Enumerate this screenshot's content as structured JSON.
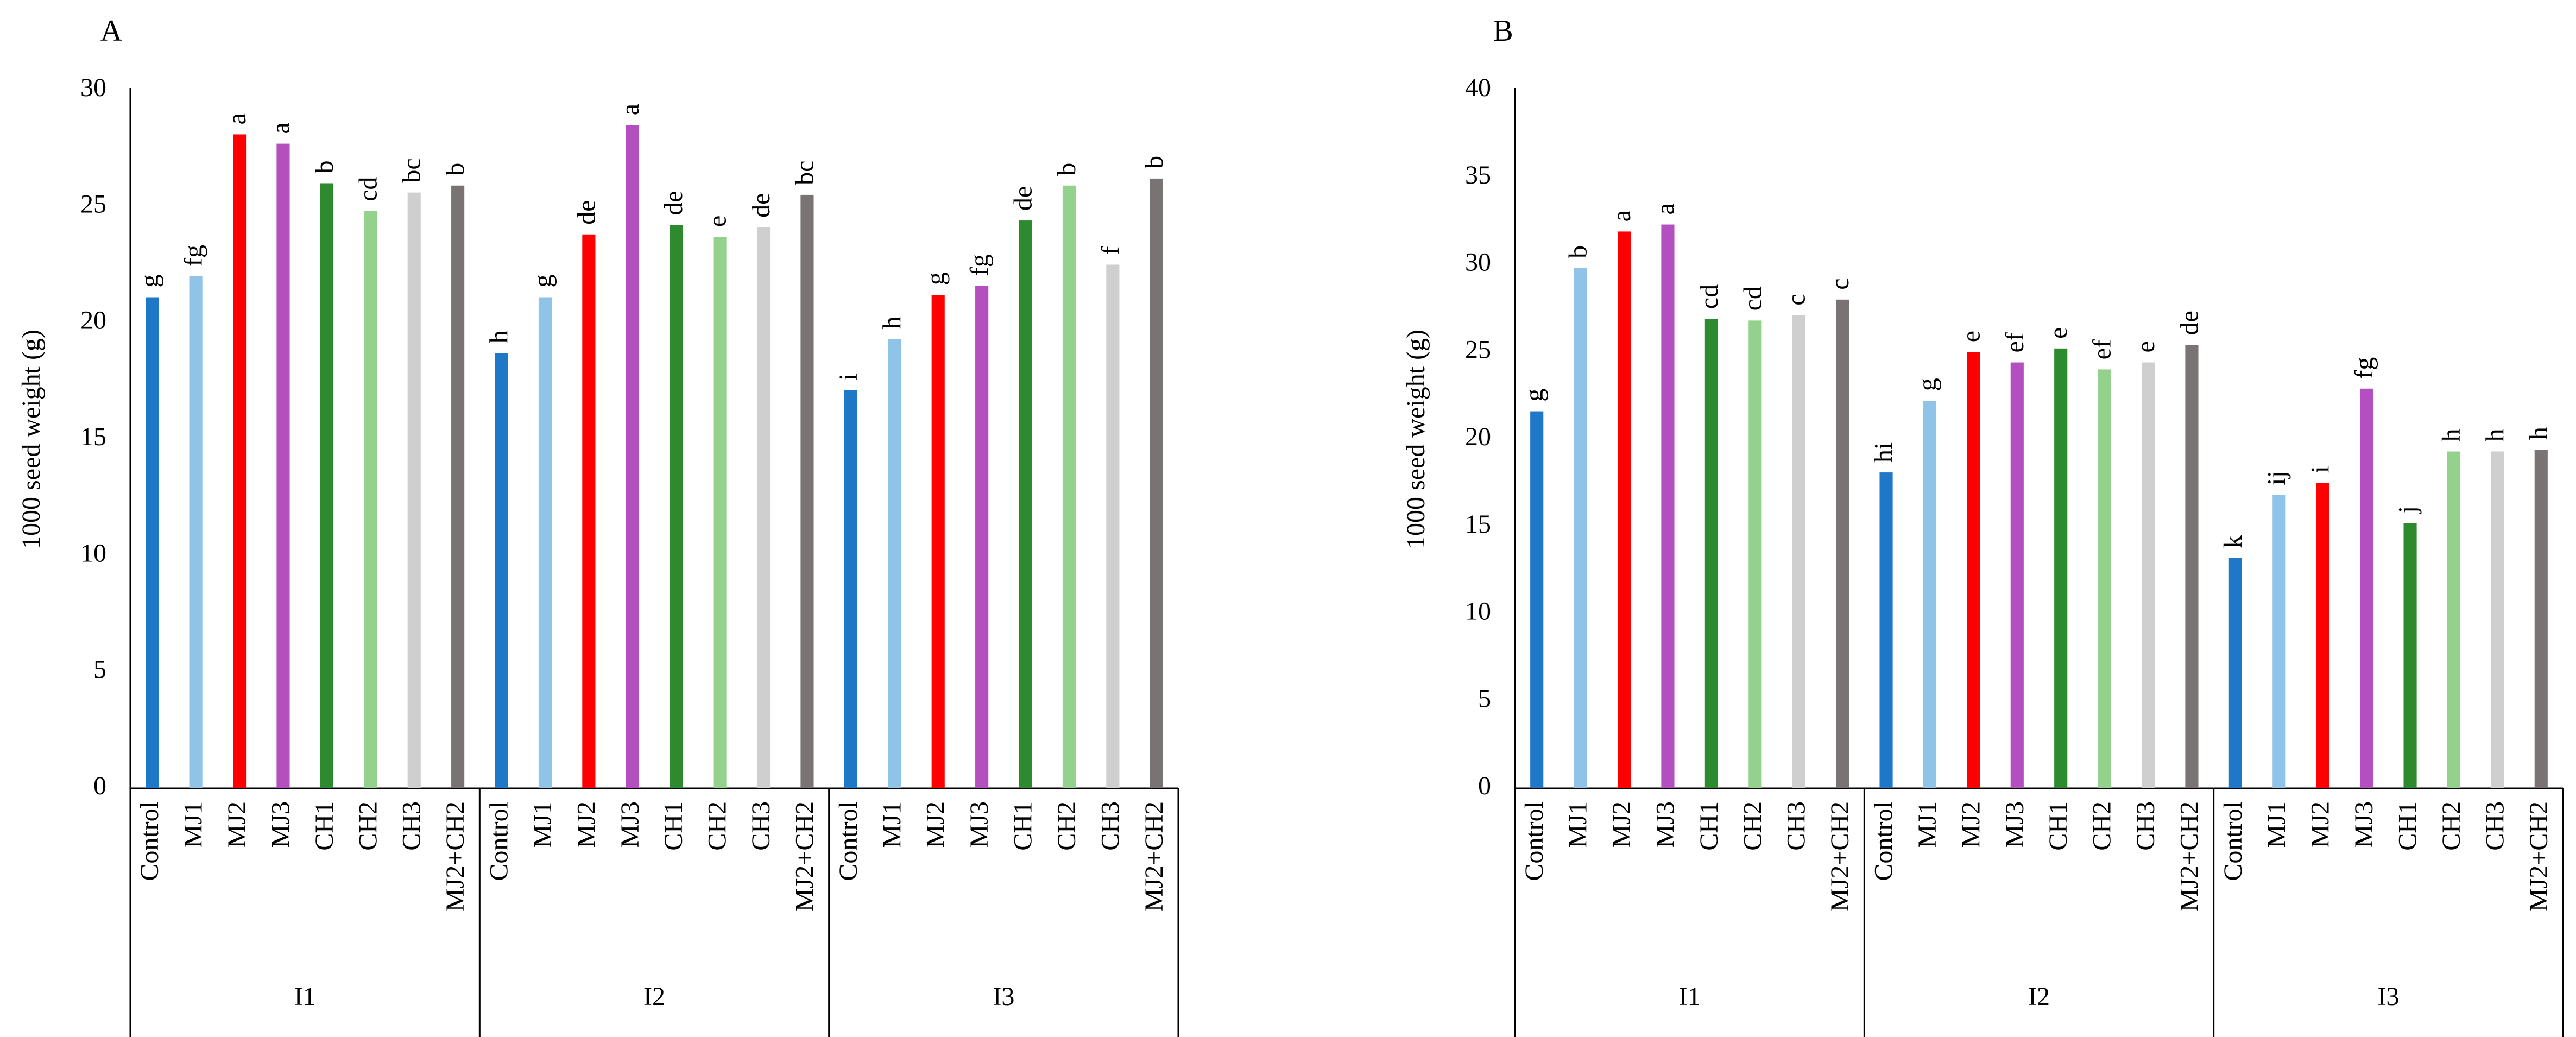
{
  "chart_data": [
    {
      "panel_label": "A",
      "type": "bar",
      "ylabel": "1000 seed weight (g)",
      "ylim": [
        0,
        30
      ],
      "yticks": [
        0,
        5,
        10,
        15,
        20,
        25,
        30
      ],
      "groups": [
        {
          "name": "I1",
          "categories": [
            "Control",
            "MJ1",
            "MJ2",
            "MJ3",
            "CH1",
            "CH2",
            "CH3",
            "MJ2+CH2"
          ],
          "values": [
            21.1,
            22.0,
            28.1,
            27.7,
            26.0,
            24.8,
            25.6,
            25.9
          ],
          "letters": [
            "g",
            "fg",
            "a",
            "a",
            "b",
            "cd",
            "bc",
            "b"
          ]
        },
        {
          "name": "I2",
          "categories": [
            "Control",
            "MJ1",
            "MJ2",
            "MJ3",
            "CH1",
            "CH2",
            "CH3",
            "MJ2+CH2"
          ],
          "values": [
            18.7,
            21.1,
            23.8,
            28.5,
            24.2,
            23.7,
            24.1,
            25.5
          ],
          "letters": [
            "h",
            "g",
            "de",
            "a",
            "de",
            "e",
            "de",
            "bc"
          ]
        },
        {
          "name": "I3",
          "categories": [
            "Control",
            "MJ1",
            "MJ2",
            "MJ3",
            "CH1",
            "CH2",
            "CH3",
            "MJ2+CH2"
          ],
          "values": [
            17.1,
            19.3,
            21.2,
            21.6,
            24.4,
            25.9,
            22.5,
            26.2
          ],
          "letters": [
            "i",
            "h",
            "g",
            "fg",
            "de",
            "b",
            "f",
            "b"
          ]
        }
      ]
    },
    {
      "panel_label": "B",
      "type": "bar",
      "ylabel": "1000 seed weight (g)",
      "ylim": [
        0,
        40
      ],
      "yticks": [
        0,
        5,
        10,
        15,
        20,
        25,
        30,
        35,
        40
      ],
      "groups": [
        {
          "name": "I1",
          "categories": [
            "Control",
            "MJ1",
            "MJ2",
            "MJ3",
            "CH1",
            "CH2",
            "CH3",
            "MJ2+CH2"
          ],
          "values": [
            21.6,
            29.8,
            31.9,
            32.3,
            26.9,
            26.8,
            27.1,
            28.0
          ],
          "letters": [
            "g",
            "b",
            "a",
            "a",
            "cd",
            "cd",
            "c",
            "c"
          ]
        },
        {
          "name": "I2",
          "categories": [
            "Control",
            "MJ1",
            "MJ2",
            "MJ3",
            "CH1",
            "CH2",
            "CH3",
            "MJ2+CH2"
          ],
          "values": [
            18.1,
            22.2,
            25.0,
            24.4,
            25.2,
            24.0,
            24.4,
            25.4
          ],
          "letters": [
            "hi",
            "g",
            "e",
            "ef",
            "e",
            "ef",
            "e",
            "de"
          ]
        },
        {
          "name": "I3",
          "categories": [
            "Control",
            "MJ1",
            "MJ2",
            "MJ3",
            "CH1",
            "CH2",
            "CH3",
            "MJ2+CH2"
          ],
          "values": [
            13.2,
            16.8,
            17.5,
            22.9,
            15.2,
            19.3,
            19.3,
            19.4
          ],
          "letters": [
            "k",
            "ij",
            "i",
            "fg",
            "j",
            "h",
            "h",
            "h"
          ]
        }
      ]
    }
  ],
  "colors": {
    "Control": "#1f77c8",
    "MJ1": "#8fc3e8",
    "MJ2": "#ff0000",
    "MJ3": "#b44fc0",
    "CH1": "#2e8a2e",
    "CH2": "#94d18c",
    "CH3": "#cfcfcf",
    "MJ2+CH2": "#7a7373"
  }
}
